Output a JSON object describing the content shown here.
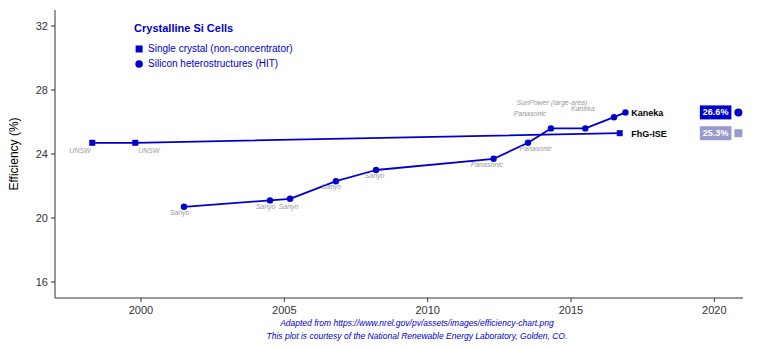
{
  "chart_data": {
    "type": "line",
    "title": "Crystalline Si Cells",
    "y_label": "Efficiency (%)",
    "xlim": [
      1997,
      2021
    ],
    "ylim": [
      15,
      33
    ],
    "xticks": [
      2000,
      2005,
      2010,
      2015,
      2020
    ],
    "yticks": [
      16,
      20,
      24,
      28,
      32
    ],
    "grid": false,
    "legend": "upper left",
    "series": [
      {
        "name": "Single crystal (non-concentrator)",
        "color": "#0000CC",
        "marker": "square",
        "x": [
          1998.3,
          1999.8,
          2016.7
        ],
        "values": [
          24.7,
          24.7,
          25.3
        ]
      },
      {
        "name": "Silicon heterostructures (HIT)",
        "color": "#0000CC",
        "marker": "circle",
        "x": [
          2001.5,
          2004.5,
          2005.2,
          2006.8,
          2008.2,
          2012.3,
          2013.5,
          2014.3,
          2015.5,
          2016.5,
          2016.9
        ],
        "values": [
          20.7,
          21.1,
          21.2,
          22.3,
          23.0,
          23.7,
          24.7,
          25.6,
          25.6,
          26.3,
          26.6
        ]
      }
    ],
    "annotations": [
      {
        "text": "UNSW",
        "x": 1997.5,
        "y": 24.35,
        "color": "#999999"
      },
      {
        "text": "UNSW",
        "x": 1999.9,
        "y": 24.35,
        "color": "#999999"
      },
      {
        "text": "Sanyo",
        "x": 2001.0,
        "y": 20.5,
        "color": "#999999"
      },
      {
        "text": "Sanyo",
        "x": 2004.0,
        "y": 20.9,
        "color": "#999999"
      },
      {
        "text": "Sanyo",
        "x": 2004.8,
        "y": 20.9,
        "color": "#999999"
      },
      {
        "text": "Sanyo",
        "x": 2006.3,
        "y": 22.1,
        "color": "#999999"
      },
      {
        "text": "Sanyo",
        "x": 2007.8,
        "y": 22.8,
        "color": "#999999"
      },
      {
        "text": "Panasonic",
        "x": 2011.5,
        "y": 23.5,
        "color": "#999999"
      },
      {
        "text": "Panasonic",
        "x": 2013.2,
        "y": 24.5,
        "color": "#999999"
      },
      {
        "text": "SunPower (large-area)",
        "x": 2013.1,
        "y": 27.4,
        "color": "#999999"
      },
      {
        "text": "Panasonic",
        "x": 2013.0,
        "y": 26.7,
        "color": "#999999"
      },
      {
        "text": "Kaneka",
        "x": 2015.0,
        "y": 27.0,
        "color": "#999999"
      },
      {
        "text": "Kaneka",
        "x": 2017.1,
        "y": 26.55,
        "color": "#000000"
      },
      {
        "text": "FhG-ISE",
        "x": 2017.1,
        "y": 25.25,
        "color": "#000000"
      }
    ],
    "badges": [
      {
        "text": "26.6%",
        "x": 2019.6,
        "y": 26.6,
        "color": "#0000CC",
        "marker": "circle"
      },
      {
        "text": "25.3%",
        "x": 2019.6,
        "y": 25.3,
        "color": "#9999CC",
        "marker": "square"
      }
    ],
    "footnotes": [
      "Adapted from https://www.nrel.gov/pv/assets/images/efficiency-chart.png",
      "This plot is courtesy of the National Renewable Energy Laboratory, Golden, CO."
    ]
  }
}
